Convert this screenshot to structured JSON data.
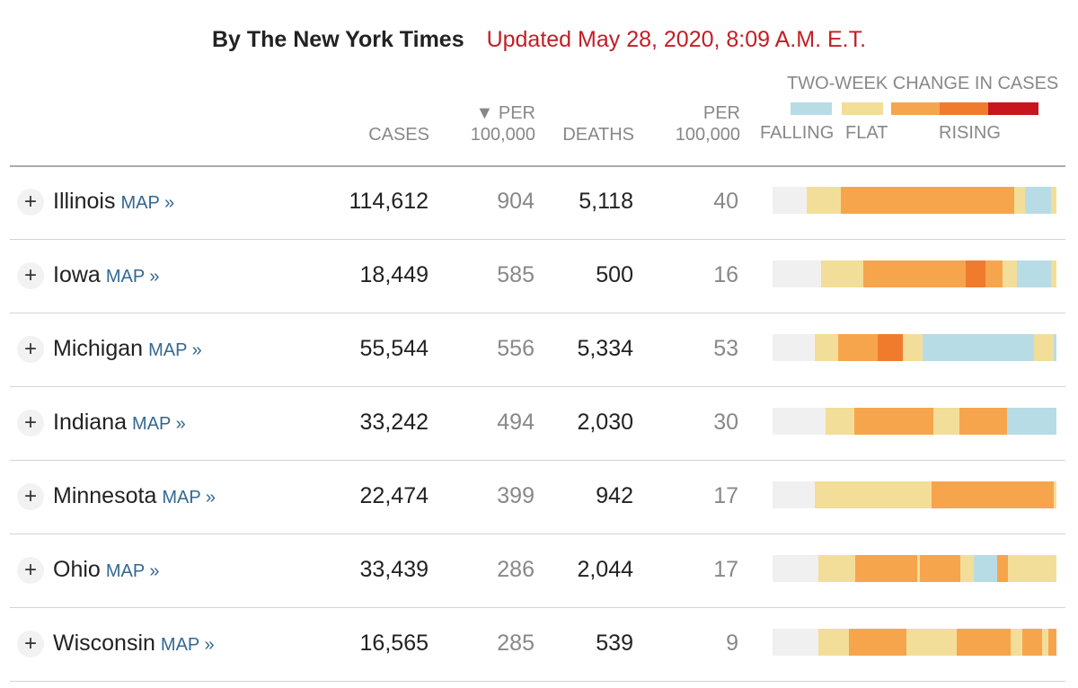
{
  "header": {
    "byline": "By The New York Times",
    "updated": "Updated May 28, 2020, 8:09 A.M. E.T."
  },
  "columns": {
    "cases": "CASES",
    "per_cases_line1": "▼ PER",
    "per_cases_line2": "100,000",
    "deaths": "DEATHS",
    "per_deaths_line1": "PER",
    "per_deaths_line2": "100,000"
  },
  "legend": {
    "title": "TWO-WEEK CHANGE IN CASES",
    "falling": "FALLING",
    "flat": "FLAT",
    "rising": "RISING",
    "colors": {
      "empty": "#f0f0f0",
      "falling": "#b8dce6",
      "flat": "#f3de99",
      "rising1": "#f6a54d",
      "rising2": "#f07b2c",
      "rising3": "#c8161d"
    }
  },
  "map_label": "MAP »",
  "rows": [
    {
      "state": "Illinois",
      "cases": "114,612",
      "per_cases": "904",
      "deaths": "5,118",
      "per_deaths": "40",
      "trend": [
        [
          "empty",
          12
        ],
        [
          "flat",
          12
        ],
        [
          "rising1",
          61
        ],
        [
          "flat",
          4
        ],
        [
          "falling",
          9
        ],
        [
          "flat",
          2
        ]
      ]
    },
    {
      "state": "Iowa",
      "cases": "18,449",
      "per_cases": "585",
      "deaths": "500",
      "per_deaths": "16",
      "trend": [
        [
          "empty",
          17
        ],
        [
          "flat",
          15
        ],
        [
          "rising1",
          36
        ],
        [
          "rising2",
          7
        ],
        [
          "rising1",
          6
        ],
        [
          "flat",
          5
        ],
        [
          "falling",
          12
        ],
        [
          "flat",
          2
        ]
      ]
    },
    {
      "state": "Michigan",
      "cases": "55,544",
      "per_cases": "556",
      "deaths": "5,334",
      "per_deaths": "53",
      "trend": [
        [
          "empty",
          15
        ],
        [
          "flat",
          8
        ],
        [
          "rising1",
          14
        ],
        [
          "rising2",
          9
        ],
        [
          "flat",
          7
        ],
        [
          "falling",
          39
        ],
        [
          "flat",
          7
        ],
        [
          "falling",
          1
        ]
      ]
    },
    {
      "state": "Indiana",
      "cases": "33,242",
      "per_cases": "494",
      "deaths": "2,030",
      "per_deaths": "30",
      "trend": [
        [
          "empty",
          18
        ],
        [
          "flat",
          10
        ],
        [
          "rising1",
          27
        ],
        [
          "flat",
          9
        ],
        [
          "rising1",
          16
        ],
        [
          "falling",
          17
        ]
      ]
    },
    {
      "state": "Minnesota",
      "cases": "22,474",
      "per_cases": "399",
      "deaths": "942",
      "per_deaths": "17",
      "trend": [
        [
          "empty",
          15
        ],
        [
          "flat",
          41
        ],
        [
          "rising1",
          43
        ],
        [
          "flat",
          1
        ]
      ]
    },
    {
      "state": "Ohio",
      "cases": "33,439",
      "per_cases": "286",
      "deaths": "2,044",
      "per_deaths": "17",
      "trend": [
        [
          "empty",
          16
        ],
        [
          "flat",
          13
        ],
        [
          "rising1",
          22
        ],
        [
          "flat",
          1
        ],
        [
          "rising1",
          14
        ],
        [
          "flat",
          5
        ],
        [
          "falling",
          8
        ],
        [
          "rising1",
          4
        ],
        [
          "flat",
          17
        ]
      ]
    },
    {
      "state": "Wisconsin",
      "cases": "16,565",
      "per_cases": "285",
      "deaths": "539",
      "per_deaths": "9",
      "trend": [
        [
          "empty",
          16
        ],
        [
          "flat",
          11
        ],
        [
          "rising1",
          20
        ],
        [
          "flat",
          18
        ],
        [
          "rising1",
          19
        ],
        [
          "flat",
          4
        ],
        [
          "rising1",
          7
        ],
        [
          "flat",
          2
        ],
        [
          "rising1",
          3
        ]
      ]
    }
  ]
}
